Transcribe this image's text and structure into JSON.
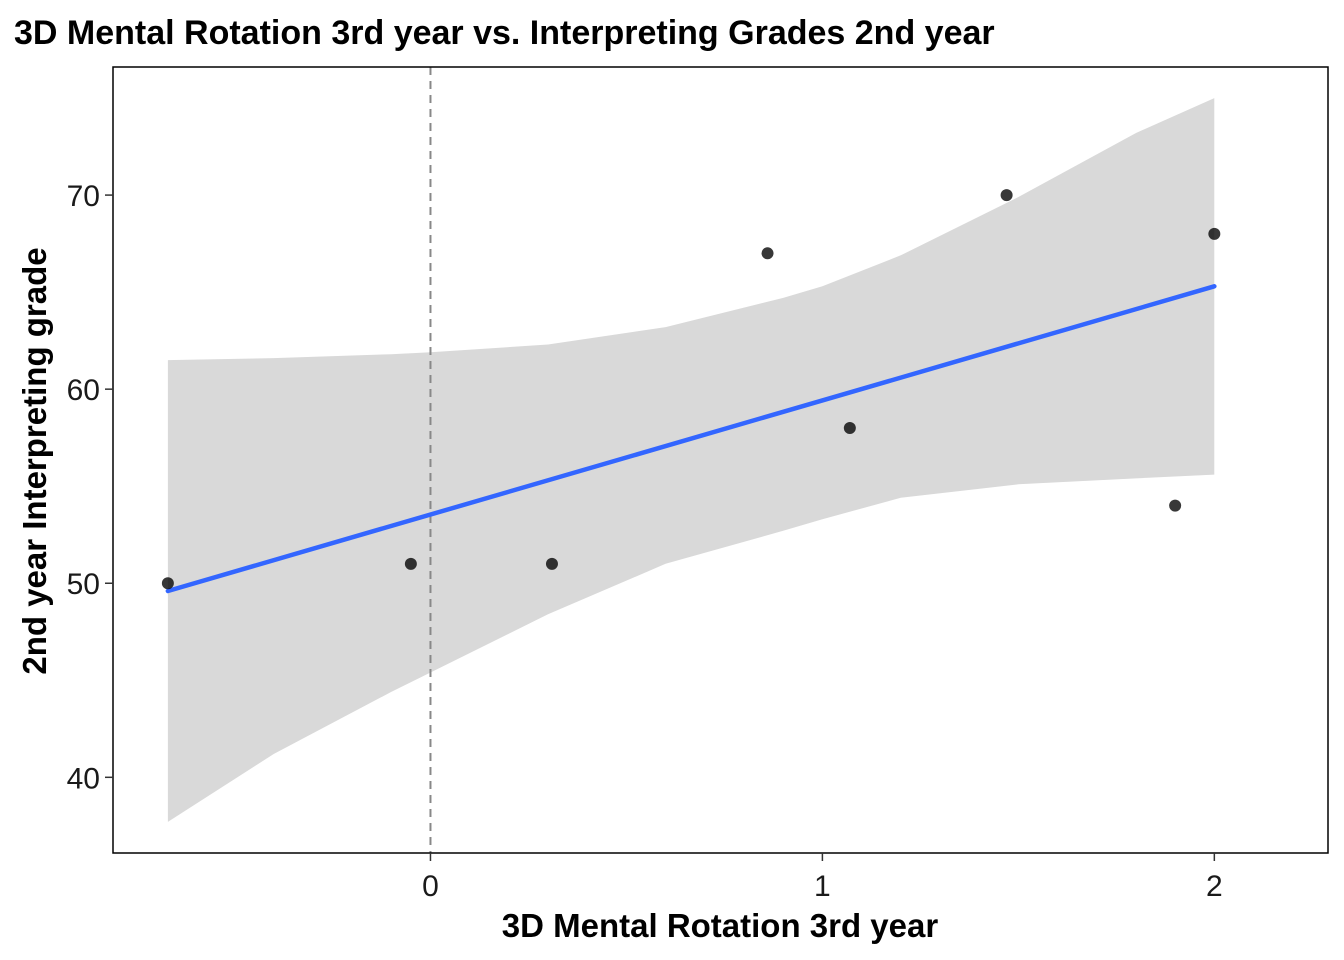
{
  "chart_data": {
    "type": "scatter",
    "title": "3D Mental Rotation 3rd year vs. Interpreting Grades 2nd year",
    "xlabel": "3D Mental Rotation 3rd year",
    "ylabel": "2nd year Interpreting grade",
    "xlim": [
      -0.81,
      2.29
    ],
    "ylim": [
      36.1,
      76.6
    ],
    "x_ticks": [
      0,
      1,
      2
    ],
    "x_tick_labels": [
      "0",
      "1",
      "2"
    ],
    "y_ticks": [
      40,
      50,
      60,
      70
    ],
    "y_tick_labels": [
      "40",
      "50",
      "60",
      "70"
    ],
    "grid": false,
    "points": [
      {
        "x": -0.67,
        "y": 50
      },
      {
        "x": -0.05,
        "y": 51
      },
      {
        "x": 0.31,
        "y": 51
      },
      {
        "x": 0.86,
        "y": 67
      },
      {
        "x": 1.07,
        "y": 58
      },
      {
        "x": 1.47,
        "y": 70
      },
      {
        "x": 1.9,
        "y": 54
      },
      {
        "x": 2.0,
        "y": 68
      }
    ],
    "fit_line": {
      "x": [
        -0.67,
        2.0
      ],
      "y": [
        49.6,
        65.3
      ],
      "color": "#3366FF"
    },
    "confidence_band": {
      "x": [
        -0.67,
        -0.4,
        -0.1,
        0.0,
        0.3,
        0.6,
        0.9,
        1.0,
        1.2,
        1.5,
        1.8,
        2.0
      ],
      "upper": [
        61.5,
        61.6,
        61.8,
        61.9,
        62.3,
        63.2,
        64.7,
        65.3,
        66.9,
        69.9,
        73.2,
        75.0
      ],
      "lower": [
        37.7,
        41.2,
        44.4,
        45.4,
        48.4,
        51.0,
        52.7,
        53.3,
        54.4,
        55.1,
        55.4,
        55.6
      ],
      "color": "#D9D9D9"
    },
    "reference_vline": {
      "x": 0,
      "style": "dashed",
      "color": "#888888"
    },
    "point_color": "#000000",
    "panel_border_color": "#000000"
  }
}
